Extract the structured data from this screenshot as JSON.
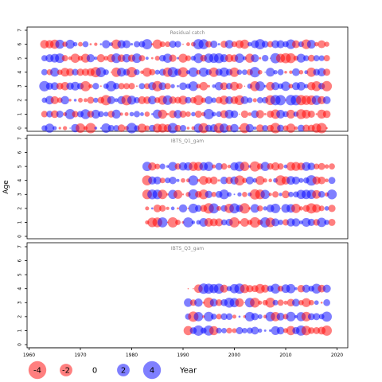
{
  "chart_data": {
    "type": "scatter",
    "ylabel": "Age",
    "x_ticks": [
      "1960",
      "1970",
      "1980",
      "1990",
      "2000",
      "2010",
      "2020"
    ],
    "xlim": [
      1959.5,
      2021.5
    ],
    "colors": {
      "negative": "#ff0000",
      "positive": "#0000ff",
      "opacity": 0.5
    },
    "panels": [
      {
        "title": "Residual catch",
        "ages": [
          0,
          1,
          2,
          3,
          4,
          5,
          6
        ],
        "years": [
          1963,
          2018
        ],
        "ylim": [
          -0.5,
          7.3
        ],
        "y_ticks": [
          "0",
          "1",
          "2",
          "3",
          "4",
          "5",
          "6",
          "7"
        ]
      },
      {
        "title": "IBTS_Q1_gam",
        "ages": [
          1,
          2,
          3,
          4,
          5
        ],
        "years": [
          1983,
          2019
        ],
        "ylim": [
          -0.5,
          7.3
        ],
        "y_ticks": [
          "0",
          "1",
          "2",
          "3",
          "4",
          "5",
          "6",
          "7"
        ]
      },
      {
        "title": "IBTS_Q3_gam",
        "ages": [
          1,
          2,
          3,
          4
        ],
        "years": [
          1991,
          2018
        ],
        "ylim": [
          -0.5,
          7.3
        ],
        "y_ticks": [
          "0",
          "1",
          "2",
          "3",
          "4",
          "5",
          "6",
          "7"
        ]
      }
    ],
    "legend": {
      "items": [
        {
          "label": "-4",
          "value": -4
        },
        {
          "label": "-2",
          "value": -2
        },
        {
          "label": "0",
          "value": 0
        },
        {
          "label": "2",
          "value": 2
        },
        {
          "label": "4",
          "value": 4
        }
      ],
      "title": "Year"
    }
  }
}
